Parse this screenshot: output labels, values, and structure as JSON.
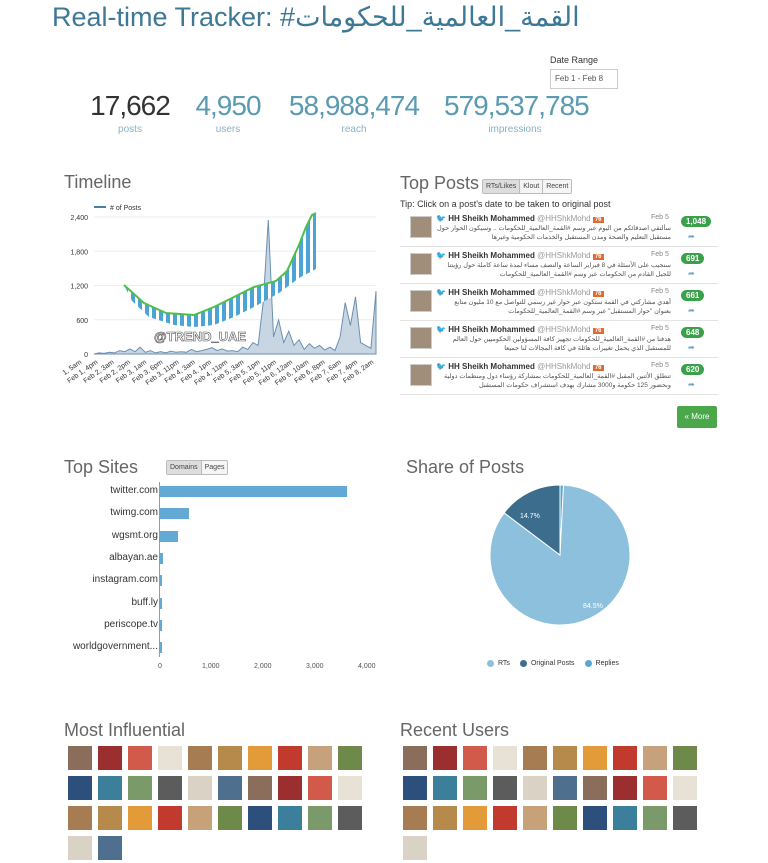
{
  "header": {
    "title": "Real-time Tracker: #القمة_العالمية_للحكومات"
  },
  "date_range": {
    "label": "Date Range",
    "value": "Feb 1 - Feb 8"
  },
  "stats": [
    {
      "value": "17,662",
      "label": "posts"
    },
    {
      "value": "4,950",
      "label": "users"
    },
    {
      "value": "58,988,474",
      "label": "reach"
    },
    {
      "value": "579,537,785",
      "label": "impressions"
    }
  ],
  "timeline": {
    "title": "Timeline",
    "legend": "# of Posts",
    "watermark": "@TREND_UAE",
    "chart_data": {
      "type": "area",
      "y_ticks": [
        "2,400",
        "1,800",
        "1,200",
        "600",
        "0"
      ],
      "ylim": [
        0,
        2400
      ],
      "x_ticks": [
        "1, 5am",
        "Feb 1, 4pm",
        "Feb 2, 3am",
        "Feb 2, 2pm",
        "Feb 3, 1am",
        "Feb 3, 6pm",
        "Feb 3, 11pm",
        "Feb 4, 3am",
        "Feb 4, 1pm",
        "Feb 4, 11pm",
        "Feb 5, 3am",
        "Feb 5, 1pm",
        "Feb 5, 11pm",
        "Feb 6, 12am",
        "Feb 6, 10am",
        "Feb 6, 8pm",
        "Feb 7, 6am",
        "Feb 7, 4pm",
        "Feb 8, 2am"
      ],
      "values": [
        0,
        20,
        10,
        30,
        20,
        60,
        40,
        90,
        40,
        120,
        30,
        60,
        20,
        40,
        20,
        50,
        30,
        40,
        30,
        80,
        40,
        60,
        80,
        110,
        60,
        90,
        50,
        60,
        40,
        120,
        80,
        200,
        150,
        900,
        2350,
        300,
        600,
        200,
        400,
        150,
        250,
        80,
        180,
        100,
        150,
        70,
        120,
        60,
        300,
        900,
        500,
        1000,
        200,
        150,
        100,
        1100
      ]
    }
  },
  "top_posts": {
    "title": "Top Posts",
    "tabs": [
      "RTs/Likes",
      "Klout",
      "Recent"
    ],
    "tip": "Tip: Click on a post's date to be taken to original post",
    "posts": [
      {
        "author": "HH Sheikh Mohammed",
        "handle": "@HHShkMohd",
        "badge": "76",
        "date": "Feb 5",
        "count": "1,048",
        "text": "سألتقي اصدقائكم من اليوم عبر وسم #القمة_العالمية_للحكومات .. وسيكون الحوار حول مستقبل التعليم والصحة ومدن المستقبل والخدمات الحكومية وغيرها"
      },
      {
        "author": "HH Sheikh Mohammed",
        "handle": "@HHShkMohd",
        "badge": "76",
        "date": "Feb 5",
        "count": "691",
        "text": "سنجيب على الأسئلة في 8 فبراير الساعة والنصف مساء لمدة ساعة كاملة حول رؤيتنا للجيل القادم من الحكومات عبر وسم #القمة_العالمية_للحكومات"
      },
      {
        "author": "HH Sheikh Mohammed",
        "handle": "@HHShkMohd",
        "badge": "76",
        "date": "Feb 5",
        "count": "661",
        "text": "أهدي مشاركتي في القمة ستكون عبر حوار غير رسمي للتواصل مع 10 مليون متابع بعنوان \"حوار المستقبل\" عبر وسم #القمة_العالمية_للحكومات"
      },
      {
        "author": "HH Sheikh Mohammed",
        "handle": "@HHShkMohd",
        "badge": "76",
        "date": "Feb 5",
        "count": "648",
        "text": "هدفنا من #القمة_العالمية_للحكومات تجهيز كافة المسؤولين الحكوميين حول العالم للمستقبل الذي يحمل تغييرات هائلة في كافة المجالات لنا جميعا"
      },
      {
        "author": "HH Sheikh Mohammed",
        "handle": "@HHShkMohd",
        "badge": "76",
        "date": "Feb 5",
        "count": "620",
        "text": "تنطلق الأثنين المقبل #القمة_العالمية_للحكومات بمشاركة رؤساء دول ومنظمات دولية وبحضور 125 حكومة و3000 مشارك بهدف استشراف حكومات المستقبل"
      }
    ],
    "more_label": "« More"
  },
  "top_sites": {
    "title": "Top Sites",
    "tabs": [
      "Domains",
      "Pages"
    ],
    "chart_data": {
      "type": "bar",
      "orientation": "horizontal",
      "categories": [
        "twitter.com",
        "twimg.com",
        "wgsmt.org",
        "albayan.ae",
        "instagram.com",
        "buff.ly",
        "periscope.tv",
        "worldgovernment..."
      ],
      "values": [
        3600,
        550,
        350,
        50,
        30,
        20,
        15,
        10
      ],
      "xlim": [
        0,
        4000
      ],
      "x_ticks": [
        "0",
        "1,000",
        "2,000",
        "3,000",
        "4,000"
      ]
    }
  },
  "share_of_posts": {
    "title": "Share of Posts",
    "chart_data": {
      "type": "pie",
      "slices": [
        {
          "name": "RTs",
          "value": 84.5,
          "color": "#8cc0dd"
        },
        {
          "name": "Original Posts",
          "value": 14.7,
          "color": "#3c6d8c"
        },
        {
          "name": "Replies",
          "value": 0.8,
          "color": "#5aa6d2"
        }
      ],
      "labels": [
        "84.5%",
        "14.7%"
      ]
    }
  },
  "most_influential": {
    "title": "Most Influential",
    "count": 32
  },
  "recent_users": {
    "title": "Recent Users",
    "count": 31
  }
}
